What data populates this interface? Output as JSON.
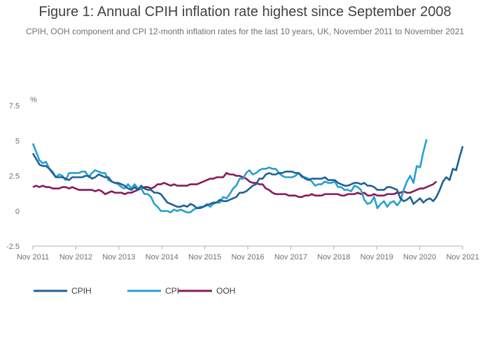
{
  "chart_data": {
    "type": "line",
    "title": "Figure 1: Annual CPIH inflation rate highest since September 2008",
    "subtitle": "CPIH, OOH component and CPI 12-month inflation rates for the last 10 years, UK, November 2011 to November 2021",
    "ylabel": "%",
    "xlabel": "",
    "ylim": [
      -2.5,
      7.5
    ],
    "yticks": [
      -2.5,
      0,
      2.5,
      5,
      7.5
    ],
    "ytick_labels": [
      "-2.5",
      "0",
      "2.5",
      "5",
      "7.5"
    ],
    "xticks": [
      "Nov 2011",
      "Nov 2012",
      "Nov 2013",
      "Nov 2014",
      "Nov 2015",
      "Nov 2016",
      "Nov 2017",
      "Nov 2018",
      "Nov 2019",
      "Nov 2020",
      "Nov 2021"
    ],
    "grid": false,
    "legend_position": "bottom-left",
    "series": [
      {
        "name": "CPIH",
        "color": "#206095",
        "values": [
          4.1,
          3.7,
          3.3,
          3.2,
          3.2,
          3.0,
          2.7,
          2.4,
          2.4,
          2.4,
          2.3,
          2.2,
          2.4,
          2.4,
          2.4,
          2.4,
          2.5,
          2.5,
          2.3,
          2.4,
          2.6,
          2.5,
          2.4,
          2.4,
          2.1,
          2.0,
          2.0,
          1.9,
          1.8,
          1.6,
          1.5,
          1.7,
          1.5,
          1.8,
          1.6,
          1.5,
          1.5,
          1.3,
          1.3,
          1.2,
          0.9,
          0.6,
          0.5,
          0.4,
          0.3,
          0.3,
          0.4,
          0.3,
          0.5,
          0.4,
          0.2,
          0.2,
          0.3,
          0.4,
          0.5,
          0.6,
          0.6,
          0.8,
          0.7,
          0.7,
          0.8,
          0.9,
          1.0,
          1.3,
          1.3,
          1.4,
          1.6,
          1.8,
          1.9,
          2.3,
          2.3,
          2.6,
          2.7,
          2.6,
          2.6,
          2.7,
          2.7,
          2.8,
          2.8,
          2.8,
          2.7,
          2.7,
          2.5,
          2.3,
          2.2,
          2.3,
          2.3,
          2.3,
          2.3,
          2.4,
          2.2,
          2.2,
          2.2,
          2.0,
          1.9,
          1.8,
          1.8,
          1.9,
          2.0,
          2.0,
          1.9,
          2.0,
          1.8,
          1.8,
          1.7,
          1.5,
          1.5,
          1.5,
          1.7,
          1.7,
          1.6,
          1.5,
          0.9,
          0.7,
          0.8,
          1.0,
          0.5,
          0.7,
          0.9,
          0.6,
          0.8,
          0.9,
          0.7,
          1.0,
          1.5,
          2.1,
          2.4,
          2.2,
          3.0,
          2.9,
          3.8,
          4.6
        ]
      },
      {
        "name": "CPI",
        "color": "#27a0cc",
        "values": [
          4.8,
          4.2,
          3.6,
          3.4,
          3.5,
          3.0,
          2.8,
          2.4,
          2.6,
          2.5,
          2.2,
          2.7,
          2.7,
          2.7,
          2.7,
          2.8,
          2.8,
          2.4,
          2.7,
          2.9,
          2.8,
          2.7,
          2.7,
          2.2,
          2.1,
          2.0,
          1.9,
          1.7,
          1.6,
          1.9,
          1.6,
          1.9,
          1.6,
          1.6,
          1.2,
          1.2,
          1.0,
          0.5,
          0.3,
          0.0,
          0.0,
          0.0,
          -0.1,
          0.1,
          0.0,
          0.1,
          0.0,
          -0.1,
          -0.1,
          0.1,
          0.2,
          0.3,
          0.3,
          0.5,
          0.3,
          0.5,
          0.6,
          0.6,
          1.0,
          0.9,
          1.2,
          1.6,
          1.8,
          2.3,
          2.3,
          2.7,
          2.9,
          2.6,
          2.7,
          2.9,
          3.0,
          3.0,
          3.1,
          3.0,
          3.0,
          2.7,
          2.5,
          2.4,
          2.4,
          2.4,
          2.5,
          2.7,
          2.4,
          2.4,
          2.3,
          2.1,
          1.8,
          1.9,
          1.9,
          2.1,
          2.0,
          2.0,
          2.1,
          1.7,
          1.7,
          1.5,
          1.5,
          1.4,
          1.8,
          1.7,
          1.5,
          0.8,
          0.5,
          0.6,
          1.0,
          0.2,
          0.5,
          0.7,
          0.3,
          0.6,
          0.7,
          0.4,
          0.7,
          1.5,
          2.1,
          2.5,
          2.0,
          3.2,
          3.1,
          4.2,
          5.1
        ]
      },
      {
        "name": "OOH",
        "color": "#871a5b",
        "values": [
          1.7,
          1.8,
          1.7,
          1.8,
          1.7,
          1.7,
          1.6,
          1.6,
          1.6,
          1.7,
          1.7,
          1.6,
          1.7,
          1.6,
          1.5,
          1.5,
          1.5,
          1.5,
          1.5,
          1.4,
          1.5,
          1.4,
          1.2,
          1.3,
          1.4,
          1.3,
          1.3,
          1.3,
          1.2,
          1.3,
          1.3,
          1.4,
          1.5,
          1.6,
          1.7,
          1.7,
          1.6,
          1.7,
          1.9,
          1.9,
          2.0,
          1.9,
          1.8,
          1.9,
          1.8,
          1.8,
          1.8,
          1.8,
          1.9,
          1.9,
          1.9,
          2.0,
          2.1,
          2.2,
          2.3,
          2.3,
          2.4,
          2.4,
          2.4,
          2.7,
          2.6,
          2.6,
          2.5,
          2.5,
          2.4,
          2.3,
          2.1,
          2.0,
          2.0,
          1.9,
          1.9,
          1.6,
          1.5,
          1.3,
          1.2,
          1.2,
          1.2,
          1.2,
          1.1,
          1.1,
          1.1,
          1.0,
          1.0,
          1.1,
          1.1,
          1.2,
          1.1,
          1.1,
          1.1,
          1.2,
          1.2,
          1.2,
          1.2,
          1.2,
          1.1,
          1.1,
          1.2,
          1.2,
          1.2,
          1.3,
          1.2,
          1.3,
          1.1,
          1.1,
          1.2,
          1.1,
          1.1,
          1.1,
          1.2,
          1.2,
          1.2,
          1.3,
          1.3,
          1.4,
          1.3,
          1.3,
          1.4,
          1.5,
          1.6,
          1.6,
          1.7,
          1.8,
          1.9,
          2.1
        ]
      }
    ]
  }
}
